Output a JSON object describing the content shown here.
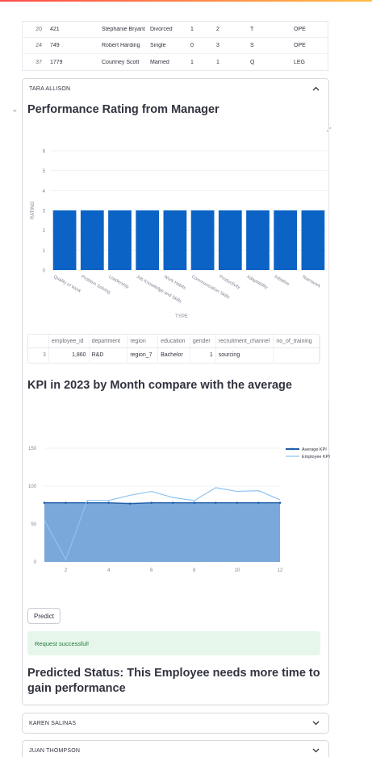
{
  "top_table": {
    "rows": [
      [
        "20",
        "421",
        "Stephanie Bryant",
        "Divorced",
        "1",
        "2",
        "T",
        "OPE"
      ],
      [
        "24",
        "749",
        "Robert Harding",
        "Single",
        "0",
        "3",
        "S",
        "OPE"
      ],
      [
        "37",
        "1779",
        "Courtney Scott",
        "Married",
        "1",
        "1",
        "Q",
        "LEG"
      ]
    ]
  },
  "expanders": {
    "open": {
      "label": "TARA ALLISON"
    },
    "second": {
      "label": "KAREN SALINAS"
    },
    "third": {
      "label": "JUAN THOMPSON"
    }
  },
  "perf": {
    "title": "Performance Rating from Manager"
  },
  "chart_data": [
    {
      "type": "bar",
      "title": "",
      "xlabel": "TYPE",
      "ylabel": "RATING",
      "ylim": [
        0,
        6
      ],
      "yticks": [
        0,
        1,
        2,
        3,
        4,
        5,
        6
      ],
      "grid": true,
      "color": "#0b63c5",
      "categories": [
        "Quality of Work",
        "Problem Solving",
        "Leadership",
        "Job Knowledge and Skills",
        "Work Habits",
        "Communication Skills",
        "Productivity",
        "Adaptability",
        "Initiative",
        "Teamwork"
      ],
      "values": [
        3,
        3,
        3,
        3,
        3,
        3,
        3,
        3,
        3,
        3
      ]
    },
    {
      "type": "area",
      "title": "",
      "xlabel": "",
      "ylabel": "",
      "xlim": [
        1,
        12
      ],
      "ylim": [
        0,
        150
      ],
      "xticks": [
        2,
        4,
        6,
        8,
        10,
        12
      ],
      "yticks": [
        0,
        50,
        100,
        150
      ],
      "grid": true,
      "legend": "top-right",
      "x": [
        1,
        2,
        3,
        4,
        5,
        6,
        7,
        8,
        9,
        10,
        11,
        12
      ],
      "series": [
        {
          "name": "Average KPI",
          "color": "#1f5ea8",
          "fill": "#7aa8db",
          "values": [
            78,
            78,
            78,
            78,
            77,
            78,
            78,
            78,
            78,
            78,
            78,
            78
          ]
        },
        {
          "name": "Employee KPI",
          "color": "#8ec4f0",
          "values": [
            55,
            3,
            81,
            81,
            88,
            93,
            85,
            81,
            98,
            93,
            94,
            82
          ]
        }
      ]
    }
  ],
  "df": {
    "headers": [
      "",
      "employee_id",
      "department",
      "region",
      "education",
      "gender",
      "recruitment_channel",
      "no_of_training"
    ],
    "row": [
      "3",
      "1,860",
      "R&D",
      "region_7",
      "Bachelor",
      "1",
      "sourcing",
      ""
    ]
  },
  "kpi": {
    "title": "KPI in 2023 by Month compare with the average"
  },
  "predict": {
    "button_label": "Predict",
    "success_message": "Request successful!",
    "result_title": "Predicted Status: This Employee needs more time to gain performance"
  },
  "colors": {
    "accent_green_bg": "#e7f6ea",
    "accent_green_text": "#1e7a3a",
    "bar_blue": "#0b63c5"
  }
}
